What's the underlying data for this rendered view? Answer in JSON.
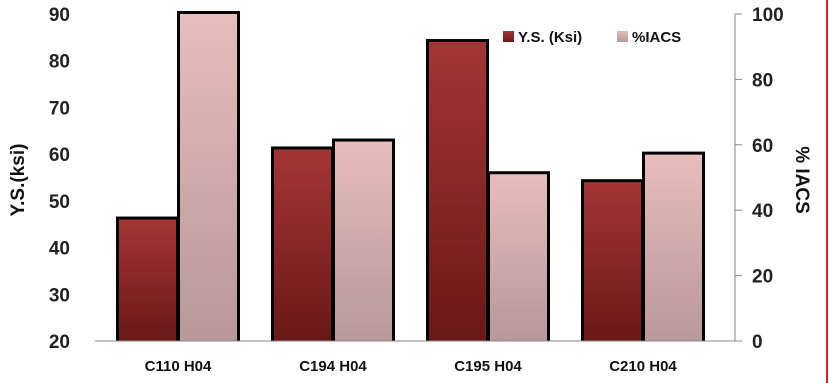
{
  "chart_data": {
    "type": "bar",
    "categories": [
      "C110 H04",
      "C194 H04",
      "C195 H04",
      "C210 H04"
    ],
    "series": [
      {
        "name": "Y.S. (Ksi)",
        "axis": "left",
        "values": [
          46,
          61,
          84,
          54
        ],
        "color": "#8b2121"
      },
      {
        "name": "%IACS",
        "axis": "right",
        "values": [
          101,
          61,
          51,
          57
        ],
        "color": "#d9aaaa"
      }
    ],
    "ylabel": "Y.S.(ksi)",
    "ylabel_right": "% IACS",
    "ylim": [
      20,
      90
    ],
    "yticks": [
      20,
      30,
      40,
      50,
      60,
      70,
      80,
      90
    ],
    "ylim_right": [
      0,
      100
    ],
    "yticks_right": [
      0,
      20,
      40,
      60,
      80,
      100
    ],
    "legend_position": "top-right",
    "grid": false
  }
}
